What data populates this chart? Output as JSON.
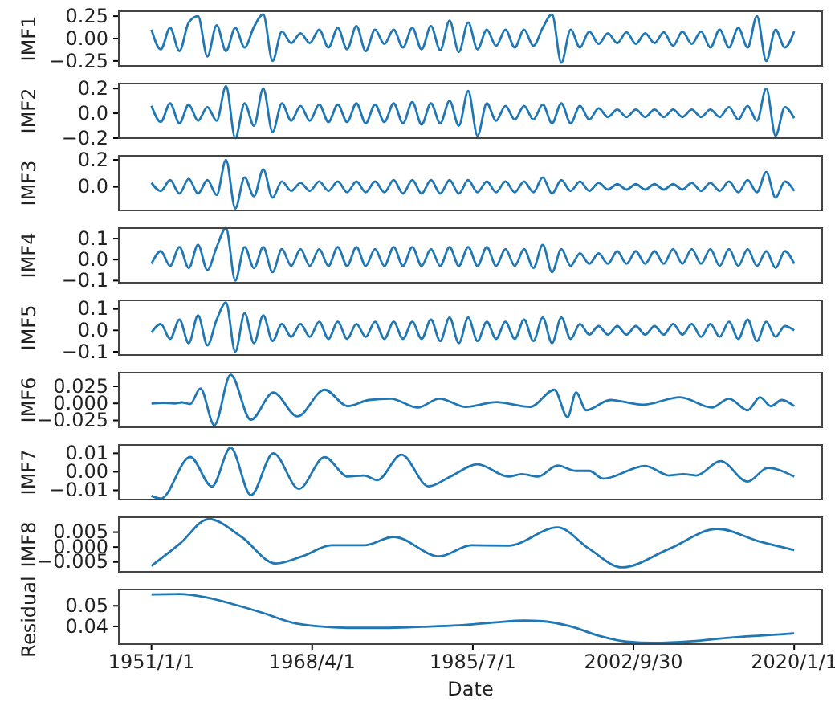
{
  "chart_data": [
    {
      "type": "line",
      "ylabel": "IMF1",
      "xlim": [
        "1947-07",
        "2023-01"
      ],
      "ylim": [
        -0.305,
        0.305
      ],
      "yticks": [
        0.25,
        {
          "value": 0,
          "label": "0.00"
        },
        {
          "value": -0.25,
          "label": "−0.25"
        }
      ],
      "tick_labels": "y",
      "x": [
        "1951",
        "1952",
        "1953",
        "1954",
        "1955",
        "1956",
        "1957",
        "1958",
        "1959",
        "1960",
        "1961",
        "1962",
        "1963",
        "1964",
        "1965",
        "1966",
        "1967",
        "1968",
        "1969",
        "1970",
        "1971",
        "1972",
        "1973",
        "1974",
        "1975",
        "1976",
        "1977",
        "1978",
        "1979",
        "1980",
        "1981",
        "1982",
        "1983",
        "1984",
        "1985",
        "1986",
        "1987",
        "1988",
        "1989",
        "1990",
        "1991",
        "1992",
        "1993",
        "1994",
        "1995",
        "1996",
        "1997",
        "1998",
        "1999",
        "2000",
        "2001",
        "2002",
        "2003",
        "2004",
        "2005",
        "2006",
        "2007",
        "2008",
        "2009",
        "2010",
        "2011",
        "2012",
        "2013",
        "2014",
        "2015",
        "2016",
        "2017",
        "2018",
        "2019",
        "2020"
      ],
      "series": [
        {
          "color": "#1f77b4",
          "values": [
            0.1,
            -0.12,
            0.12,
            -0.14,
            0.18,
            0.25,
            -0.2,
            0.15,
            -0.14,
            0.12,
            -0.1,
            0.13,
            0.27,
            -0.25,
            0.08,
            -0.05,
            0.06,
            -0.05,
            0.1,
            -0.1,
            0.12,
            -0.12,
            0.14,
            -0.14,
            0.1,
            -0.06,
            0.1,
            -0.1,
            0.12,
            -0.12,
            0.14,
            -0.13,
            0.2,
            -0.15,
            0.18,
            -0.12,
            0.1,
            -0.08,
            0.1,
            -0.1,
            0.1,
            -0.08,
            0.12,
            0.27,
            -0.27,
            0.1,
            -0.1,
            0.08,
            -0.06,
            0.06,
            -0.05,
            0.07,
            -0.06,
            0.06,
            -0.05,
            0.07,
            -0.08,
            0.08,
            -0.06,
            0.08,
            -0.1,
            0.1,
            -0.1,
            0.12,
            -0.1,
            0.25,
            -0.25,
            0.1,
            -0.1,
            0.08
          ]
        }
      ]
    },
    {
      "type": "line",
      "ylabel": "IMF2",
      "xlim": [
        "1947-07",
        "2023-01"
      ],
      "ylim": [
        -0.2,
        0.24
      ],
      "yticks": [
        0.2,
        {
          "value": 0,
          "label": "0.0"
        },
        {
          "value": -0.2,
          "label": "−0.2"
        }
      ],
      "tick_labels": "y",
      "x": [
        "1951",
        "1952",
        "1953",
        "1954",
        "1955",
        "1956",
        "1957",
        "1958",
        "1959",
        "1960",
        "1961",
        "1962",
        "1963",
        "1964",
        "1965",
        "1966",
        "1967",
        "1968",
        "1969",
        "1970",
        "1971",
        "1972",
        "1973",
        "1974",
        "1975",
        "1976",
        "1977",
        "1978",
        "1979",
        "1980",
        "1981",
        "1982",
        "1983",
        "1984",
        "1985",
        "1986",
        "1987",
        "1988",
        "1989",
        "1990",
        "1991",
        "1992",
        "1993",
        "1994",
        "1995",
        "1996",
        "1997",
        "1998",
        "1999",
        "2000",
        "2001",
        "2002",
        "2003",
        "2004",
        "2005",
        "2006",
        "2007",
        "2008",
        "2009",
        "2010",
        "2011",
        "2012",
        "2013",
        "2014",
        "2015",
        "2016",
        "2017",
        "2018",
        "2019",
        "2020"
      ],
      "series": [
        {
          "color": "#1f77b4",
          "values": [
            0.06,
            -0.07,
            0.08,
            -0.08,
            0.07,
            -0.06,
            0.05,
            -0.06,
            0.22,
            -0.2,
            0.08,
            -0.1,
            0.2,
            -0.15,
            0.08,
            -0.06,
            0.06,
            -0.06,
            0.07,
            -0.07,
            0.07,
            -0.07,
            0.08,
            -0.08,
            0.07,
            -0.07,
            0.08,
            -0.08,
            0.09,
            -0.09,
            0.08,
            -0.08,
            0.1,
            -0.1,
            0.18,
            -0.18,
            0.08,
            -0.06,
            0.06,
            -0.05,
            0.06,
            -0.05,
            0.07,
            -0.08,
            0.08,
            -0.08,
            0.06,
            -0.05,
            0.04,
            -0.03,
            0.03,
            -0.03,
            0.03,
            -0.03,
            0.03,
            -0.03,
            0.03,
            -0.03,
            0.03,
            -0.03,
            0.03,
            -0.03,
            0.05,
            -0.05,
            0.06,
            -0.06,
            0.2,
            -0.18,
            0.05,
            -0.04
          ]
        }
      ]
    },
    {
      "type": "line",
      "ylabel": "IMF3",
      "xlim": [
        "1947-07",
        "2023-01"
      ],
      "ylim": [
        -0.175,
        0.23
      ],
      "yticks": [
        0.2,
        {
          "value": 0,
          "label": "0.0"
        }
      ],
      "tick_labels": "y",
      "x": [
        "1951",
        "1952",
        "1953",
        "1954",
        "1955",
        "1956",
        "1957",
        "1958",
        "1959",
        "1960",
        "1961",
        "1962",
        "1963",
        "1964",
        "1965",
        "1966",
        "1967",
        "1968",
        "1969",
        "1970",
        "1971",
        "1972",
        "1973",
        "1974",
        "1975",
        "1976",
        "1977",
        "1978",
        "1979",
        "1980",
        "1981",
        "1982",
        "1983",
        "1984",
        "1985",
        "1986",
        "1987",
        "1988",
        "1989",
        "1990",
        "1991",
        "1992",
        "1993",
        "1994",
        "1995",
        "1996",
        "1997",
        "1998",
        "1999",
        "2000",
        "2001",
        "2002",
        "2003",
        "2004",
        "2005",
        "2006",
        "2007",
        "2008",
        "2009",
        "2010",
        "2011",
        "2012",
        "2013",
        "2014",
        "2015",
        "2016",
        "2017",
        "2018",
        "2019",
        "2020"
      ],
      "series": [
        {
          "color": "#1f77b4",
          "values": [
            0.03,
            -0.03,
            0.05,
            -0.05,
            0.06,
            -0.05,
            0.05,
            -0.06,
            0.2,
            -0.16,
            0.07,
            -0.07,
            0.13,
            -0.08,
            0.04,
            -0.03,
            0.03,
            -0.03,
            0.04,
            -0.03,
            0.04,
            -0.04,
            0.04,
            -0.04,
            0.04,
            -0.04,
            0.05,
            -0.05,
            0.05,
            -0.05,
            0.05,
            -0.05,
            0.05,
            -0.05,
            0.05,
            -0.04,
            0.04,
            -0.04,
            0.04,
            -0.04,
            0.04,
            -0.04,
            0.07,
            -0.05,
            0.05,
            -0.03,
            0.04,
            -0.03,
            0.03,
            -0.02,
            0.02,
            -0.02,
            0.02,
            -0.02,
            0.02,
            -0.02,
            0.02,
            -0.02,
            0.03,
            -0.03,
            0.03,
            -0.03,
            0.04,
            -0.04,
            0.05,
            -0.04,
            0.11,
            -0.08,
            0.04,
            -0.03
          ]
        }
      ]
    },
    {
      "type": "line",
      "ylabel": "IMF4",
      "xlim": [
        "1947-07",
        "2023-01"
      ],
      "ylim": [
        -0.11,
        0.15
      ],
      "yticks": [
        0.1,
        {
          "value": 0,
          "label": "0.0"
        },
        {
          "value": -0.1,
          "label": "−0.1"
        }
      ],
      "tick_labels": "y",
      "x": [
        "1951",
        "1952",
        "1953",
        "1954",
        "1955",
        "1956",
        "1957",
        "1958",
        "1959",
        "1960",
        "1961",
        "1962",
        "1963",
        "1964",
        "1965",
        "1966",
        "1967",
        "1968",
        "1969",
        "1970",
        "1971",
        "1972",
        "1973",
        "1974",
        "1975",
        "1976",
        "1977",
        "1978",
        "1979",
        "1980",
        "1981",
        "1982",
        "1983",
        "1984",
        "1985",
        "1986",
        "1987",
        "1988",
        "1989",
        "1990",
        "1991",
        "1992",
        "1993",
        "1994",
        "1995",
        "1996",
        "1997",
        "1998",
        "1999",
        "2000",
        "2001",
        "2002",
        "2003",
        "2004",
        "2005",
        "2006",
        "2007",
        "2008",
        "2009",
        "2010",
        "2011",
        "2012",
        "2013",
        "2014",
        "2015",
        "2016",
        "2017",
        "2018",
        "2019",
        "2020"
      ],
      "series": [
        {
          "color": "#1f77b4",
          "values": [
            -0.02,
            0.04,
            -0.03,
            0.06,
            -0.04,
            0.07,
            -0.05,
            0.06,
            0.15,
            -0.1,
            0.06,
            -0.04,
            0.06,
            -0.06,
            0.05,
            -0.03,
            0.05,
            -0.03,
            0.05,
            -0.03,
            0.06,
            -0.03,
            0.06,
            -0.03,
            0.05,
            -0.03,
            0.06,
            -0.03,
            0.06,
            -0.03,
            0.05,
            -0.03,
            0.06,
            -0.03,
            0.06,
            -0.03,
            0.06,
            -0.03,
            0.05,
            -0.03,
            0.05,
            -0.04,
            0.07,
            -0.06,
            0.05,
            -0.03,
            0.03,
            -0.02,
            0.03,
            -0.02,
            0.04,
            -0.02,
            0.04,
            -0.02,
            0.04,
            -0.02,
            0.05,
            -0.02,
            0.05,
            -0.02,
            0.05,
            -0.03,
            0.05,
            -0.03,
            0.05,
            -0.03,
            0.04,
            -0.04,
            0.04,
            -0.02
          ]
        }
      ]
    },
    {
      "type": "line",
      "ylabel": "IMF5",
      "xlim": [
        "1947-07",
        "2023-01"
      ],
      "ylim": [
        -0.115,
        0.14
      ],
      "yticks": [
        0.1,
        {
          "value": 0,
          "label": "0.0"
        },
        {
          "value": -0.1,
          "label": "−0.1"
        }
      ],
      "tick_labels": "y",
      "x": [
        "1951",
        "1952",
        "1953",
        "1954",
        "1955",
        "1956",
        "1957",
        "1958",
        "1959",
        "1960",
        "1961",
        "1962",
        "1963",
        "1964",
        "1965",
        "1966",
        "1967",
        "1968",
        "1969",
        "1970",
        "1971",
        "1972",
        "1973",
        "1974",
        "1975",
        "1976",
        "1977",
        "1978",
        "1979",
        "1980",
        "1981",
        "1982",
        "1983",
        "1984",
        "1985",
        "1986",
        "1987",
        "1988",
        "1989",
        "1990",
        "1991",
        "1992",
        "1993",
        "1994",
        "1995",
        "1996",
        "1997",
        "1998",
        "1999",
        "2000",
        "2001",
        "2002",
        "2003",
        "2004",
        "2005",
        "2006",
        "2007",
        "2008",
        "2009",
        "2010",
        "2011",
        "2012",
        "2013",
        "2014",
        "2015",
        "2016",
        "2017",
        "2018",
        "2019",
        "2020"
      ],
      "series": [
        {
          "color": "#1f77b4",
          "values": [
            -0.01,
            0.03,
            -0.04,
            0.05,
            -0.06,
            0.07,
            -0.07,
            0.05,
            0.13,
            -0.1,
            0.08,
            -0.06,
            0.07,
            -0.05,
            0.03,
            -0.03,
            0.03,
            -0.03,
            0.04,
            -0.04,
            0.04,
            -0.04,
            0.03,
            -0.03,
            0.04,
            -0.04,
            0.04,
            -0.04,
            0.04,
            -0.04,
            0.05,
            -0.05,
            0.06,
            -0.06,
            0.06,
            -0.05,
            0.04,
            -0.04,
            0.04,
            -0.04,
            0.05,
            -0.05,
            0.06,
            -0.06,
            0.06,
            -0.04,
            0.03,
            -0.02,
            0.02,
            -0.02,
            0.02,
            -0.02,
            0.02,
            -0.02,
            0.02,
            -0.02,
            0.03,
            -0.02,
            0.03,
            -0.03,
            0.03,
            -0.03,
            0.04,
            -0.04,
            0.05,
            -0.05,
            0.04,
            -0.03,
            0.02,
            0
          ]
        }
      ]
    },
    {
      "type": "line",
      "ylabel": "IMF6",
      "xlim": [
        "1947-07",
        "2023-01"
      ],
      "ylim": [
        -0.035,
        0.045
      ],
      "yticks": [
        0.025,
        {
          "value": 0,
          "label": "0.000"
        },
        {
          "value": -0.025,
          "label": "−0.025"
        }
      ],
      "tick_labels": "y",
      "x": [
        "1951-01",
        "1952-04",
        "1953-07",
        "1954-04",
        "1955-03",
        "1956-04",
        "1957-10",
        "1959-07",
        "1961-09",
        "1964-02",
        "1966-09",
        "1969-08",
        "1972-02",
        "1974-05",
        "1976-09",
        "1979-08",
        "1981-12",
        "1984-10",
        "1988-01",
        "1991-09",
        "1994-04",
        "1995-09",
        "1996-08",
        "1997-09",
        "2000-04",
        "2003-10",
        "2007-10",
        "2011-03",
        "2013-01",
        "2015-01",
        "2016-05",
        "2017-07",
        "2018-09",
        "2020-01"
      ],
      "series": [
        {
          "color": "#1f77b4",
          "values": [
            0,
            0.0007,
            0,
            0.0015,
            -0.0009,
            0.022,
            -0.032,
            0.042,
            -0.024,
            0.016,
            -0.019,
            0.02,
            -0.004,
            0.005,
            0.007,
            -0.006,
            0.007,
            -0.005,
            0.002,
            -0.005,
            0.02,
            -0.02,
            0.016,
            -0.01,
            0.005,
            -0.002,
            0.009,
            -0.006,
            0.007,
            -0.01,
            0.009,
            -0.004,
            0.005,
            -0.004
          ]
        }
      ]
    },
    {
      "type": "line",
      "ylabel": "IMF7",
      "xlim": [
        "1947-07",
        "2023-01"
      ],
      "ylim": [
        -0.015,
        0.0145
      ],
      "yticks": [
        0.01,
        {
          "value": 0,
          "label": "0.00"
        },
        {
          "value": -0.01,
          "label": "−0.01"
        }
      ],
      "tick_labels": "y",
      "x": [
        "1951-01",
        "1952-01",
        "1955-03",
        "1957-07",
        "1959-07",
        "1961-09",
        "1964-02",
        "1966-11",
        "1969-08",
        "1972-02",
        "1973-11",
        "1975-04",
        "1977-11",
        "1980-10",
        "1983-02",
        "1986-01",
        "1989-05",
        "1990-10",
        "1992-07",
        "1994-08",
        "1996-08",
        "1998-01",
        "1999-07",
        "2004-01",
        "2006-08",
        "2008-02",
        "2009-07",
        "2012-02",
        "2015-01",
        "2017-03",
        "2020-01"
      ],
      "series": [
        {
          "color": "#1f77b4",
          "values": [
            -0.013,
            -0.0145,
            0.008,
            -0.008,
            0.013,
            -0.0126,
            0.01,
            -0.0092,
            0.0079,
            -0.0026,
            -0.002,
            -0.0045,
            0.0092,
            -0.0079,
            -0.0026,
            0.004,
            -0.0026,
            -0.0013,
            -0.0026,
            0.0034,
            0.0005,
            0.0005,
            -0.0037,
            0.0032,
            -0.002,
            -0.0013,
            -0.002,
            0.0058,
            -0.0053,
            0.0021,
            -0.0026
          ]
        }
      ]
    },
    {
      "type": "line",
      "ylabel": "IMF8",
      "xlim": [
        "1947-07",
        "2023-01"
      ],
      "ylim": [
        -0.0083,
        0.01
      ],
      "yticks": [
        0.005,
        {
          "value": 0,
          "label": "0.000"
        },
        {
          "value": -0.005,
          "label": "−0.005"
        }
      ],
      "tick_labels": "y",
      "x": [
        "1951-01",
        "1954-01",
        "1957-03",
        "1960-09",
        "1964-05",
        "1967-04",
        "1970-05",
        "1973-11",
        "1977-01",
        "1981-12",
        "1985-05",
        "1989-05",
        "1994-08",
        "1998-01",
        "2001-07",
        "2006-08",
        "2011-10",
        "2016-05",
        "2020-01"
      ],
      "series": [
        {
          "color": "#1f77b4",
          "values": [
            -0.0063,
            0.001,
            0.0094,
            0.0034,
            -0.0055,
            -0.003,
            0.0006,
            0.0006,
            0.0034,
            -0.0031,
            0.0006,
            0.0005,
            0.0066,
            -0.0006,
            -0.0068,
            -0.0006,
            0.0061,
            0.0018,
            -0.001
          ]
        }
      ]
    },
    {
      "type": "line",
      "ylabel": "Residual",
      "xlabel": "Date",
      "xlim": [
        "1947-07",
        "2023-01"
      ],
      "ylim": [
        0.0314,
        0.0579
      ],
      "yticks": [
        0.05,
        0.04
      ],
      "xticks": [
        {
          "value": "1951-01-01",
          "label": "1951/1/1"
        },
        {
          "value": "1968-04-01",
          "label": "1968/4/1"
        },
        {
          "value": "1985-07-01",
          "label": "1985/7/1"
        },
        {
          "value": "2002-09-30",
          "label": "2002/9/30"
        },
        {
          "value": "2020-01-01",
          "label": "2020/1/1"
        }
      ],
      "x": [
        "1951",
        "1954",
        "1957",
        "1960",
        "1963",
        "1966",
        "1969",
        "1972",
        "1976",
        "1980",
        "1984",
        "1988",
        "1991",
        "1993",
        "1996",
        "1999",
        "2002",
        "2005",
        "2009",
        "2013",
        "2017",
        "2020"
      ],
      "series": [
        {
          "color": "#1f77b4",
          "values": [
            0.0555,
            0.0557,
            0.054,
            0.0505,
            0.0465,
            0.042,
            0.04,
            0.0393,
            0.0393,
            0.0398,
            0.0405,
            0.042,
            0.0428,
            0.0425,
            0.04,
            0.0355,
            0.0326,
            0.032,
            0.0328,
            0.0345,
            0.0357,
            0.0366
          ]
        }
      ]
    }
  ]
}
